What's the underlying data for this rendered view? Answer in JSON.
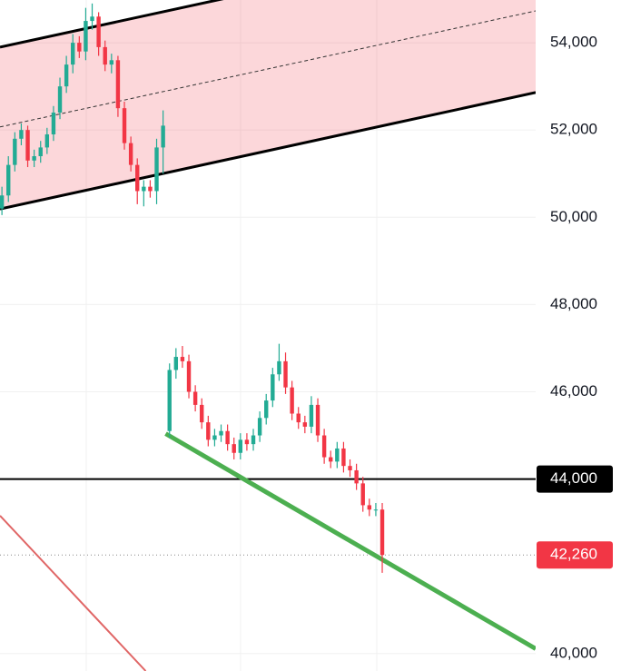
{
  "chart_data": {
    "type": "candlestick",
    "xlim": [
      -0.3,
      82.8
    ],
    "ylim": [
      39600,
      54980
    ],
    "yticks": [
      {
        "value": 40000,
        "label": "40,000"
      },
      {
        "value": 46000,
        "label": "46,000"
      },
      {
        "value": 48000,
        "label": "48,000"
      },
      {
        "value": 50000,
        "label": "50,000"
      },
      {
        "value": 52000,
        "label": "52,000"
      },
      {
        "value": 54000,
        "label": "54,000"
      }
    ],
    "grid": true,
    "up_color": "#22ab94",
    "down_color": "#f23645",
    "open": [
      50200,
      50500,
      51200,
      51800,
      52000,
      51300,
      51400,
      51600,
      51900,
      52400,
      53000,
      53500,
      54000,
      53800,
      54500,
      54600,
      53900,
      53500,
      53600,
      52500,
      51700,
      51200,
      50600,
      50700,
      50600,
      51600,
      45100,
      46500,
      46800,
      46700,
      46000,
      45700,
      45300,
      44900,
      45000,
      45100,
      44800,
      44600,
      44900,
      44800,
      45000,
      45400,
      45800,
      46400,
      46700,
      46100,
      45500,
      45300,
      45200,
      45700,
      45000,
      44500,
      44400,
      44700,
      44300,
      44200,
      43900,
      43400,
      43300,
      43300
    ],
    "high": [
      50700,
      51400,
      51950,
      52150,
      52100,
      51550,
      51750,
      52050,
      52550,
      53200,
      53700,
      54200,
      54150,
      54800,
      54900,
      54700,
      54050,
      53750,
      53700,
      52650,
      51850,
      51350,
      50850,
      50850,
      51800,
      52450,
      46650,
      47000,
      47050,
      46850,
      46150,
      45850,
      45450,
      45150,
      45250,
      45250,
      44950,
      45050,
      45050,
      45150,
      45550,
      45950,
      46550,
      47100,
      46900,
      46250,
      45650,
      45450,
      45900,
      45850,
      45150,
      44650,
      44850,
      44850,
      44450,
      44350,
      44050,
      43550,
      43450,
      43450
    ],
    "low": [
      50050,
      50350,
      51050,
      51650,
      51150,
      51150,
      51250,
      51450,
      51750,
      52250,
      52850,
      53300,
      53650,
      53600,
      54300,
      53700,
      53350,
      53300,
      52300,
      51550,
      51050,
      50300,
      50250,
      50450,
      50300,
      51000,
      44950,
      46300,
      46550,
      45850,
      45550,
      45150,
      44750,
      44750,
      44850,
      44650,
      44450,
      44450,
      44650,
      44650,
      44850,
      45250,
      45650,
      46250,
      45950,
      45350,
      45150,
      45050,
      45050,
      44850,
      44350,
      44250,
      44250,
      44150,
      44050,
      43750,
      43250,
      43150,
      43150,
      41850
    ],
    "close": [
      50500,
      51200,
      51800,
      52000,
      51300,
      51400,
      51600,
      51900,
      52400,
      53000,
      53500,
      54000,
      53800,
      54500,
      54600,
      53900,
      53500,
      53600,
      52500,
      51700,
      51200,
      50600,
      50700,
      50600,
      51600,
      52100,
      46500,
      46800,
      46700,
      46000,
      45700,
      45300,
      44900,
      45000,
      45100,
      44800,
      44600,
      44900,
      44800,
      45000,
      45400,
      45800,
      46400,
      46700,
      46100,
      45500,
      45300,
      45200,
      45700,
      45000,
      44500,
      44400,
      44700,
      44300,
      44200,
      43900,
      43400,
      43300,
      43300,
      42260
    ],
    "channel": {
      "fill_color": "#f23645",
      "upper": {
        "x": [
          -0.3,
          82.8
        ],
        "y": [
          53900,
          56560
        ]
      },
      "lower": {
        "x": [
          -0.3,
          82.8
        ],
        "y": [
          50190,
          52860
        ]
      },
      "middle": {
        "x": [
          -0.3,
          82.8
        ],
        "y": [
          52070,
          54730
        ]
      }
    },
    "trendlines": [
      {
        "x": [
          25.4,
          82.8
        ],
        "y": [
          45040,
          40110
        ],
        "color": "#4caf50"
      },
      {
        "x": [
          -0.3,
          22.3
        ],
        "y": [
          43160,
          39600
        ],
        "color": "#e06666"
      }
    ],
    "level": {
      "value": 44000,
      "label": "44,000",
      "color": "#000000"
    },
    "last_price": {
      "value": 42260,
      "label": "42,260",
      "color": "#f23645"
    }
  }
}
